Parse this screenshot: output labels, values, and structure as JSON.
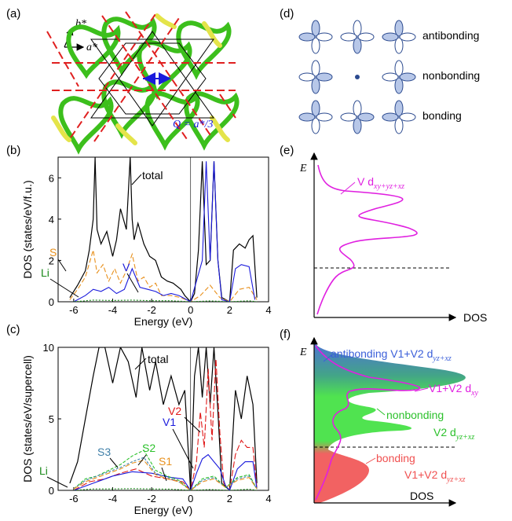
{
  "panels": {
    "a": {
      "label": "(a)",
      "axis_b": "b*",
      "axis_a": "a*",
      "q_label": "Q = a*/3"
    },
    "d": {
      "label": "(d)",
      "rows": [
        "antibonding",
        "nonbonding",
        "bonding"
      ]
    },
    "b": {
      "label": "(b)",
      "annotations": [
        "total",
        "S",
        "Li",
        "V"
      ]
    },
    "c": {
      "label": "(c)",
      "annotations": [
        "total",
        "V2",
        "V1",
        "S3",
        "S2",
        "S1",
        "Li"
      ]
    },
    "e": {
      "label": "(e)",
      "ylabel": "E",
      "xlabel": "DOS",
      "curve_label": "V d",
      "curve_sub": "xy+yz+xz"
    },
    "f": {
      "label": "(f)",
      "ylabel": "E",
      "xlabel": "DOS",
      "anti_label": "antibonding V1+V2 d",
      "anti_sub": "yz+xz",
      "dxy_label": "V1+V2 d",
      "dxy_sub": "xy",
      "nonbonding": "nonbonding",
      "v2_label": "V2 d",
      "v2_sub": "yz+xz",
      "bonding": "bonding",
      "bond_v_label": "V1+V2 d",
      "bond_v_sub": "yz+xz"
    }
  },
  "chart_data": [
    {
      "type": "line",
      "panel": "b",
      "xlabel": "Energy (eV)",
      "ylabel": "DOS (states/eV/f.u.)",
      "xlim": [
        -6.8,
        4
      ],
      "ylim": [
        0,
        7
      ],
      "xticks": [
        "-6",
        "-4",
        "-2",
        "0",
        "2",
        "4"
      ],
      "yticks": [
        "0",
        "2",
        "4",
        "6"
      ],
      "series": [
        {
          "name": "total",
          "color": "#000000",
          "x": [
            -6.2,
            -5.8,
            -5.4,
            -5.2,
            -5.0,
            -4.9,
            -4.8,
            -4.6,
            -4.3,
            -4.0,
            -3.8,
            -3.6,
            -3.3,
            -3.1,
            -3.0,
            -2.9,
            -2.7,
            -2.4,
            -2.1,
            -1.8,
            -1.5,
            -1.2,
            -0.9,
            -0.5,
            -0.3,
            0.0,
            0.2,
            0.4,
            0.6,
            0.8,
            1.0,
            1.2,
            1.4,
            1.6,
            2.0,
            2.2,
            2.5,
            2.8,
            3.0,
            3.2,
            3.4
          ],
          "y": [
            0.2,
            0.8,
            1.5,
            2.5,
            4.0,
            7.0,
            3.5,
            2.8,
            3.4,
            2.2,
            3.0,
            4.5,
            3.5,
            7.0,
            4.0,
            3.0,
            3.8,
            2.8,
            2.2,
            2.0,
            1.2,
            1.0,
            0.9,
            0.6,
            0.3,
            0.0,
            0.4,
            2.5,
            6.8,
            1.8,
            2.0,
            6.8,
            2.0,
            0.2,
            0.0,
            2.5,
            2.8,
            2.6,
            3.0,
            3.2,
            0.2
          ]
        },
        {
          "name": "S",
          "color": "#e8901c",
          "x": [
            -6.2,
            -5.8,
            -5.4,
            -5.0,
            -4.8,
            -4.5,
            -4.2,
            -3.9,
            -3.6,
            -3.3,
            -3.0,
            -2.7,
            -2.4,
            -2.1,
            -1.8,
            -1.5,
            -1.0,
            -0.5,
            0.0,
            0.5,
            1.0,
            1.5,
            2.0,
            2.5,
            3.0,
            3.4
          ],
          "y": [
            0.1,
            0.6,
            1.2,
            2.5,
            1.4,
            1.8,
            1.0,
            1.6,
            0.9,
            1.5,
            2.3,
            1.0,
            1.2,
            0.7,
            0.9,
            0.3,
            0.3,
            0.2,
            0.0,
            0.3,
            0.8,
            0.2,
            0.0,
            0.6,
            0.7,
            0.1
          ]
        },
        {
          "name": "V",
          "color": "#1a1adc",
          "x": [
            -6.0,
            -5.4,
            -5.0,
            -4.6,
            -4.2,
            -3.8,
            -3.4,
            -3.0,
            -2.6,
            -2.2,
            -1.8,
            -1.4,
            -1.0,
            -0.6,
            0.0,
            0.3,
            0.6,
            0.8,
            1.0,
            1.2,
            1.4,
            1.6,
            2.0,
            2.3,
            2.6,
            3.0,
            3.3
          ],
          "y": [
            0.0,
            0.3,
            0.6,
            0.5,
            0.7,
            0.4,
            0.6,
            1.6,
            0.7,
            0.6,
            0.5,
            0.3,
            0.4,
            0.3,
            0.0,
            1.0,
            2.0,
            6.8,
            2.0,
            6.8,
            2.0,
            0.1,
            0.0,
            1.6,
            1.8,
            1.7,
            0.1
          ]
        },
        {
          "name": "Li",
          "color": "#1b8a1b",
          "x": [
            -6.0,
            -5.0,
            -4.0,
            -3.0,
            -2.0,
            -1.0,
            0.0,
            1.0,
            2.0,
            3.0,
            3.4
          ],
          "y": [
            0.0,
            0.08,
            0.06,
            0.08,
            0.05,
            0.05,
            0.0,
            0.04,
            0.0,
            0.05,
            0.0
          ]
        }
      ]
    },
    {
      "type": "line",
      "panel": "c",
      "xlabel": "Energy (eV)",
      "ylabel": "DOS (states/eV/supercell)",
      "xlim": [
        -6.8,
        4
      ],
      "ylim": [
        0,
        10
      ],
      "xticks": [
        "-6",
        "-4",
        "-2",
        "0",
        "2",
        "4"
      ],
      "yticks": [
        "0",
        "5",
        "10"
      ],
      "series": [
        {
          "name": "total",
          "color": "#000000",
          "x": [
            -6.2,
            -5.8,
            -5.4,
            -5.0,
            -4.7,
            -4.4,
            -4.0,
            -3.6,
            -3.2,
            -2.8,
            -2.5,
            -2.1,
            -1.8,
            -1.4,
            -1.0,
            -0.6,
            -0.3,
            0.0,
            0.2,
            0.4,
            0.6,
            0.8,
            1.0,
            1.2,
            1.4,
            1.6,
            2.0,
            2.3,
            2.6,
            2.9,
            3.2,
            3.4
          ],
          "y": [
            0.5,
            2.0,
            5.0,
            8.0,
            10.0,
            10.0,
            7.5,
            10.0,
            9.0,
            6.5,
            10.0,
            7.0,
            9.0,
            6.0,
            8.0,
            6.0,
            7.0,
            0.0,
            8.0,
            10.0,
            6.5,
            10.0,
            6.0,
            10.0,
            5.5,
            0.5,
            0.0,
            7.0,
            5.0,
            8.0,
            6.0,
            0.5
          ]
        },
        {
          "name": "V2",
          "color": "#e01818",
          "x": [
            -6.0,
            -5.2,
            -4.4,
            -3.6,
            -2.8,
            -2.0,
            -1.2,
            -0.4,
            0.0,
            0.3,
            0.5,
            0.7,
            0.9,
            1.1,
            1.3,
            1.5,
            1.7,
            2.0,
            2.3,
            2.6,
            2.9,
            3.2,
            3.4
          ],
          "y": [
            0.0,
            0.6,
            0.8,
            1.2,
            1.5,
            1.0,
            0.8,
            0.6,
            0.0,
            2.0,
            5.5,
            3.0,
            8.5,
            3.5,
            9.2,
            4.0,
            0.5,
            0.0,
            2.5,
            3.5,
            3.0,
            3.0,
            0.2
          ]
        },
        {
          "name": "V1",
          "color": "#1a1adc",
          "x": [
            -6.0,
            -5.0,
            -4.0,
            -3.0,
            -2.0,
            -1.0,
            -0.4,
            0.0,
            0.3,
            0.6,
            0.9,
            1.2,
            1.5,
            1.8,
            2.0,
            2.4,
            2.8,
            3.2,
            3.4
          ],
          "y": [
            0.0,
            0.5,
            1.0,
            1.3,
            1.2,
            0.9,
            0.8,
            0.0,
            1.2,
            2.2,
            2.5,
            2.0,
            1.5,
            0.3,
            0.0,
            1.5,
            2.0,
            2.0,
            0.1
          ]
        },
        {
          "name": "S2",
          "color": "#2cc12c",
          "x": [
            -6.0,
            -5.4,
            -4.8,
            -4.2,
            -3.6,
            -3.0,
            -2.4,
            -1.8,
            -1.2,
            -0.6,
            0.0,
            0.6,
            1.2,
            1.8,
            2.4,
            3.0,
            3.4
          ],
          "y": [
            0.1,
            0.8,
            1.0,
            1.4,
            1.8,
            2.4,
            2.8,
            1.4,
            1.0,
            0.7,
            0.0,
            0.8,
            1.0,
            0.2,
            0.9,
            1.1,
            0.1
          ]
        },
        {
          "name": "S3",
          "color": "#3f7fa8",
          "x": [
            -6.0,
            -5.4,
            -4.8,
            -4.2,
            -3.6,
            -3.0,
            -2.4,
            -1.8,
            -1.2,
            -0.6,
            0.0,
            0.6,
            1.2,
            1.8,
            2.4,
            3.0,
            3.4
          ],
          "y": [
            0.1,
            0.7,
            1.0,
            1.3,
            1.6,
            2.0,
            2.3,
            1.2,
            0.9,
            0.6,
            0.0,
            0.7,
            0.9,
            0.2,
            0.8,
            1.0,
            0.1
          ]
        },
        {
          "name": "S1",
          "color": "#e8901c",
          "x": [
            -6.0,
            -5.4,
            -4.8,
            -4.2,
            -3.6,
            -3.0,
            -2.4,
            -1.8,
            -1.2,
            -0.6,
            0.0,
            0.6,
            1.2,
            1.8,
            2.4,
            3.0,
            3.4
          ],
          "y": [
            0.1,
            0.6,
            0.9,
            1.2,
            1.5,
            1.9,
            2.1,
            1.1,
            0.8,
            0.6,
            0.0,
            0.6,
            0.8,
            0.2,
            0.7,
            0.9,
            0.1
          ]
        },
        {
          "name": "Li",
          "color": "#1b8a1b",
          "x": [
            -6.0,
            -5.0,
            -4.0,
            -3.0,
            -2.0,
            -1.0,
            0.0,
            1.0,
            2.0,
            3.0,
            3.4
          ],
          "y": [
            0.0,
            0.1,
            0.1,
            0.12,
            0.1,
            0.08,
            0.0,
            0.06,
            0.0,
            0.08,
            0.0
          ]
        }
      ]
    }
  ],
  "colors": {
    "green": "#3cbf1c",
    "yellow": "#e4e44a",
    "red_dash": "#e02020",
    "blue_label": "#1a1adc",
    "magenta": "#e020e0",
    "orbital_fill": "#b7c7e8",
    "orbital_stroke": "#2b4a8f"
  }
}
